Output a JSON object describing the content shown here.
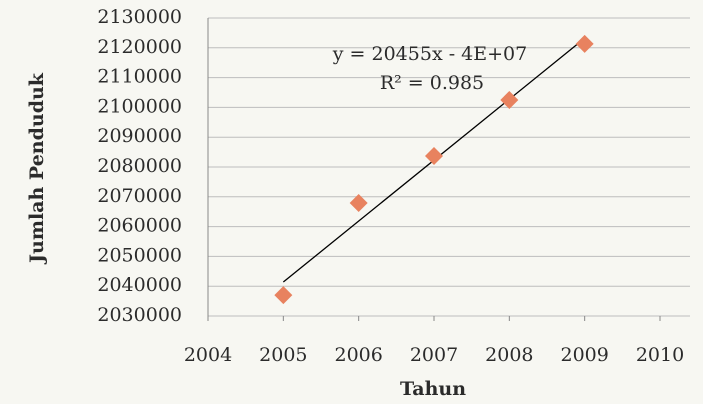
{
  "chart_data": {
    "type": "scatter",
    "x_label": "Tahun",
    "y_label": "Jumlah Penduduk",
    "series": [
      {
        "name": "Jumlah Penduduk",
        "color": "#e8825f",
        "x": [
          2005,
          2006,
          2007,
          2008,
          2009
        ],
        "values": [
          2037000,
          2067900,
          2083700,
          2102500,
          2121300
        ]
      }
    ],
    "trendline": {
      "color": "#000000",
      "x": [
        2005,
        2009
      ],
      "values": [
        2041400,
        2123200
      ]
    },
    "annotations": [
      "y = 20455x - 4E+07",
      "R² = 0.985"
    ],
    "xlim": [
      2004,
      2010
    ],
    "xticks": [
      2004,
      2005,
      2006,
      2007,
      2008,
      2009,
      2010
    ],
    "ylim": [
      2030000,
      2130000
    ],
    "yticks": [
      2030000,
      2040000,
      2050000,
      2060000,
      2070000,
      2080000,
      2090000,
      2100000,
      2110000,
      2120000,
      2130000
    ],
    "grid": true
  }
}
